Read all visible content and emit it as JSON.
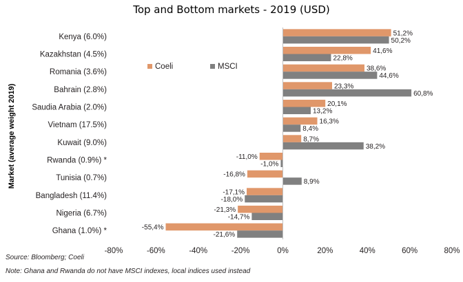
{
  "chart_data": {
    "type": "bar",
    "orientation": "horizontal",
    "title": "Top and Bottom markets - 2019 (USD)",
    "ylabel": "Market (average weight 2019)",
    "xlabel": "",
    "xlim": [
      -80,
      80
    ],
    "x_ticks": [
      -80,
      -60,
      -40,
      -20,
      0,
      20,
      40,
      60,
      80
    ],
    "x_tick_labels": [
      "-80%",
      "-60%",
      "-40%",
      "-20%",
      "0%",
      "20%",
      "40%",
      "60%",
      "80%"
    ],
    "legend_position": "top-left inside plot",
    "grid": false,
    "categories": [
      "Kenya (6.0%)",
      "Kazakhstan (4.5%)",
      "Romania (3.6%)",
      "Bahrain (2.8%)",
      "Saudia Arabia (2.0%)",
      "Vietnam (17.5%)",
      "Kuwait (9.0%)",
      "Rwanda (0.9%) *",
      "Tunisia (0.7%)",
      "Bangladesh (11.4%)",
      "Nigeria (6.7%)",
      "Ghana (1.0%) *"
    ],
    "series": [
      {
        "name": "Coeli",
        "color": "#e0976a",
        "values": [
          51.2,
          41.6,
          38.6,
          23.3,
          20.1,
          16.3,
          8.7,
          -11.0,
          -16.8,
          -17.1,
          -21.3,
          -55.4
        ],
        "labels": [
          "51,2%",
          "41,6%",
          "38,6%",
          "23,3%",
          "20,1%",
          "16,3%",
          "8,7%",
          "-11,0%",
          "-16,8%",
          "-17,1%",
          "-21,3%",
          "-55,4%"
        ]
      },
      {
        "name": "MSCI",
        "color": "#808080",
        "values": [
          50.2,
          22.8,
          44.6,
          60.8,
          13.2,
          8.4,
          38.2,
          -1.0,
          8.9,
          -18.0,
          -14.7,
          -21.6
        ],
        "labels": [
          "50,2%",
          "22,8%",
          "44,6%",
          "60,8%",
          "13,2%",
          "8,4%",
          "38,2%",
          "-1,0%",
          "8,9%",
          "-18,0%",
          "-14,7%",
          "-21,6%"
        ]
      }
    ]
  },
  "notes": {
    "source": "Source: Bloomberg; Coeli",
    "note": "Note: Ghana and Rwanda do not have MSCI indexes, local indices used instead"
  }
}
